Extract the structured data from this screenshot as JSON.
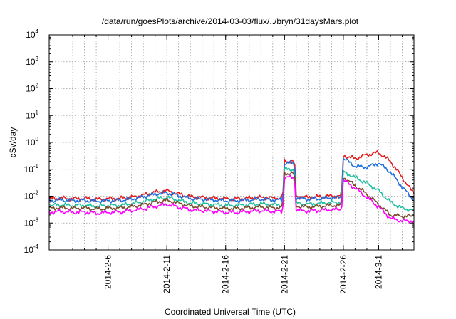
{
  "chart_data": {
    "type": "line",
    "title": "/data/run/goesPlots/archive/2014-03-03/flux/../bryn/31daysMars.plot",
    "xlabel": "Coordinated Universal Time (UTC)",
    "ylabel": "cSv/day",
    "yscale": "log",
    "ylim": [
      0.0001,
      10000
    ],
    "xlim": [
      "2014-02-01",
      "2014-03-04"
    ],
    "grid": true,
    "y_ticks": [
      {
        "base": "10",
        "exp": "-4",
        "value": 0.0001
      },
      {
        "base": "10",
        "exp": "-3",
        "value": 0.001
      },
      {
        "base": "10",
        "exp": "-2",
        "value": 0.01
      },
      {
        "base": "10",
        "exp": "-1",
        "value": 0.1
      },
      {
        "base": "10",
        "exp": "0",
        "value": 1
      },
      {
        "base": "10",
        "exp": "1",
        "value": 10
      },
      {
        "base": "10",
        "exp": "2",
        "value": 100
      },
      {
        "base": "10",
        "exp": "3",
        "value": 1000
      },
      {
        "base": "10",
        "exp": "4",
        "value": 10000
      }
    ],
    "x_ticks": [
      {
        "label": "2014-2-6",
        "date": "2014-02-06"
      },
      {
        "label": "2014-2-11",
        "date": "2014-02-11"
      },
      {
        "label": "2014-2-16",
        "date": "2014-02-16"
      },
      {
        "label": "2014-2-21",
        "date": "2014-02-21"
      },
      {
        "label": "2014-2-26",
        "date": "2014-02-26"
      },
      {
        "label": "2014-3-1",
        "date": "2014-03-01"
      }
    ],
    "x": [
      "2014-02-01",
      "2014-02-02",
      "2014-02-03",
      "2014-02-04",
      "2014-02-05",
      "2014-02-06",
      "2014-02-07",
      "2014-02-08",
      "2014-02-09",
      "2014-02-10",
      "2014-02-11",
      "2014-02-12",
      "2014-02-13",
      "2014-02-14",
      "2014-02-15",
      "2014-02-16",
      "2014-02-17",
      "2014-02-18",
      "2014-02-19",
      "2014-02-20",
      "2014-02-21",
      "2014-02-22",
      "2014-02-23",
      "2014-02-24",
      "2014-02-25",
      "2014-02-26",
      "2014-02-27",
      "2014-02-28",
      "2014-03-01",
      "2014-03-02",
      "2014-03-03",
      "2014-03-04"
    ],
    "series": [
      {
        "color": "#e41a1c",
        "values": [
          0.008,
          0.0085,
          0.008,
          0.0082,
          0.0075,
          0.008,
          0.0082,
          0.009,
          0.011,
          0.014,
          0.016,
          0.012,
          0.0095,
          0.009,
          0.0085,
          0.008,
          0.008,
          0.0085,
          0.009,
          0.0085,
          0.2,
          0.01,
          0.009,
          0.0095,
          0.01,
          0.32,
          0.25,
          0.35,
          0.42,
          0.2,
          0.05,
          0.012
        ]
      },
      {
        "color": "#1f6fe0",
        "values": [
          0.0068,
          0.0072,
          0.0068,
          0.007,
          0.0065,
          0.0068,
          0.007,
          0.0078,
          0.0095,
          0.012,
          0.0135,
          0.0105,
          0.0082,
          0.0078,
          0.0072,
          0.0068,
          0.0068,
          0.0072,
          0.0078,
          0.0072,
          0.17,
          0.0085,
          0.0078,
          0.0082,
          0.0088,
          0.26,
          0.13,
          0.12,
          0.17,
          0.08,
          0.022,
          0.007
        ]
      },
      {
        "color": "#20c0a0",
        "values": [
          0.0045,
          0.0048,
          0.0045,
          0.0046,
          0.0042,
          0.0045,
          0.0046,
          0.0052,
          0.0062,
          0.0078,
          0.009,
          0.007,
          0.0055,
          0.0052,
          0.0048,
          0.0045,
          0.0045,
          0.0048,
          0.0052,
          0.0048,
          0.1,
          0.0055,
          0.005,
          0.0054,
          0.0058,
          0.08,
          0.05,
          0.03,
          0.016,
          0.006,
          0.0035,
          0.003
        ]
      },
      {
        "color": "#7a4a2a",
        "values": [
          0.0035,
          0.0037,
          0.0035,
          0.0036,
          0.0033,
          0.0035,
          0.0036,
          0.004,
          0.0048,
          0.006,
          0.007,
          0.0055,
          0.0043,
          0.004,
          0.0037,
          0.0035,
          0.0035,
          0.0037,
          0.004,
          0.0037,
          0.07,
          0.0043,
          0.0039,
          0.0042,
          0.0045,
          0.05,
          0.025,
          0.012,
          0.005,
          0.002,
          0.0018,
          0.0018
        ]
      },
      {
        "color": "#ff00ff",
        "values": [
          0.0025,
          0.0027,
          0.0025,
          0.0026,
          0.0023,
          0.0025,
          0.0026,
          0.0029,
          0.0034,
          0.0042,
          0.005,
          0.0039,
          0.0031,
          0.0029,
          0.0027,
          0.0025,
          0.0025,
          0.0027,
          0.0029,
          0.0027,
          0.05,
          0.003,
          0.0028,
          0.003,
          0.0032,
          0.04,
          0.02,
          0.009,
          0.004,
          0.0015,
          0.0012,
          0.0012
        ]
      }
    ]
  }
}
